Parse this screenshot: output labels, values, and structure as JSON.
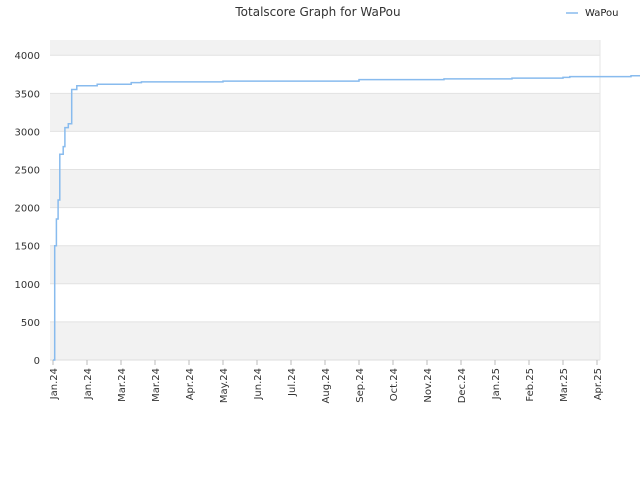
{
  "chart_data": {
    "type": "line",
    "title": "Totalscore Graph for WaPou",
    "xlabel": "",
    "ylabel": "",
    "ylim": [
      0,
      4200
    ],
    "y_ticks": [
      0,
      500,
      1000,
      1500,
      2000,
      2500,
      3000,
      3500,
      4000
    ],
    "x_ticks": [
      "Jan.24",
      "Jan.24",
      "Mar.24",
      "Mar.24",
      "Apr.24",
      "May.24",
      "Jun.24",
      "Jul.24",
      "Aug.24",
      "Sep.24",
      "Oct.24",
      "Nov.24",
      "Dec.24",
      "Jan.25",
      "Feb.25",
      "Mar.25",
      "Apr.25"
    ],
    "legend": {
      "position": "top-right"
    },
    "grid": true,
    "band_colors": [
      "#f2f2f2",
      "#ffffff"
    ],
    "series": [
      {
        "name": "WaPou",
        "color": "#88bbee",
        "points": [
          [
            0,
            0
          ],
          [
            0.05,
            1500
          ],
          [
            0.1,
            1850
          ],
          [
            0.15,
            2100
          ],
          [
            0.2,
            2700
          ],
          [
            0.3,
            2800
          ],
          [
            0.35,
            3050
          ],
          [
            0.45,
            3100
          ],
          [
            0.55,
            3550
          ],
          [
            0.7,
            3600
          ],
          [
            1.0,
            3600
          ],
          [
            1.3,
            3620
          ],
          [
            2.3,
            3640
          ],
          [
            2.6,
            3650
          ],
          [
            5.0,
            3660
          ],
          [
            9.0,
            3680
          ],
          [
            11.5,
            3690
          ],
          [
            13.5,
            3700
          ],
          [
            15.0,
            3710
          ],
          [
            15.2,
            3720
          ],
          [
            17.0,
            3730
          ],
          [
            19.0,
            3740
          ],
          [
            20.0,
            3740
          ],
          [
            20.02,
            3980
          ]
        ]
      }
    ]
  }
}
